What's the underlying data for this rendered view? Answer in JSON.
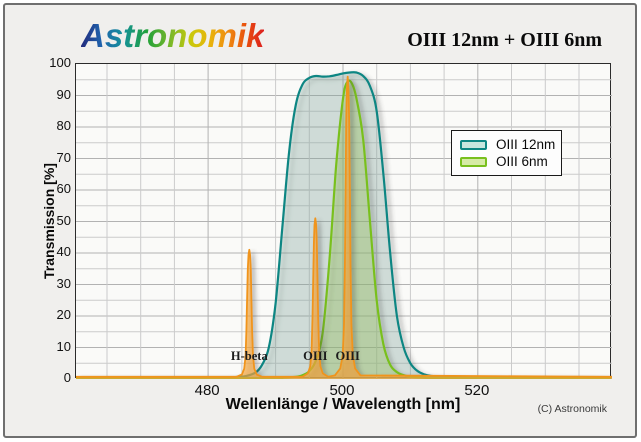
{
  "header": {
    "logo": "Astronomik",
    "title": "OIII 12nm + OIII 6nm"
  },
  "chart_data": {
    "type": "area",
    "title": "OIII 12nm + OIII 6nm",
    "xlabel": "Wellenlänge / Wavelength [nm]",
    "ylabel": "Transmission [%]",
    "xlim": [
      460.4,
      539.9
    ],
    "ylim": [
      0,
      100
    ],
    "x_ticks": [
      480,
      500,
      520
    ],
    "y_ticks": [
      0,
      10,
      20,
      30,
      40,
      50,
      60,
      70,
      80,
      90,
      100
    ],
    "grid": {
      "x_step_nm": 5,
      "y_step_pct": 5,
      "major_color": "#b2b2b2",
      "minor_color": "#cbcbcb"
    },
    "plot_bg": "#fafaf8",
    "legend": {
      "position": "upper-right",
      "entries": [
        {
          "label": "OIII 12nm",
          "stroke": "#0f8683",
          "fill": "#c8e6de"
        },
        {
          "label": "OIII 6nm",
          "stroke": "#79c01e",
          "fill": "#d6eba6"
        }
      ]
    },
    "series": [
      {
        "name": "OIII 12nm",
        "stroke": "#0f8683",
        "fill": "rgba(140,180,170,0.28)",
        "points": [
          [
            460.4,
            0.3
          ],
          [
            475,
            0.3
          ],
          [
            482,
            0.4
          ],
          [
            484,
            0.6
          ],
          [
            485.5,
            0.9
          ],
          [
            487,
            2
          ],
          [
            488,
            4.5
          ],
          [
            489,
            10
          ],
          [
            490,
            24
          ],
          [
            491,
            48
          ],
          [
            492,
            72
          ],
          [
            493,
            87
          ],
          [
            494,
            93.5
          ],
          [
            495,
            95.6
          ],
          [
            496,
            96.2
          ],
          [
            497,
            96.0
          ],
          [
            498,
            96.1
          ],
          [
            499,
            96.5
          ],
          [
            500,
            97.0
          ],
          [
            501,
            97.3
          ],
          [
            502,
            97.3
          ],
          [
            503,
            96.2
          ],
          [
            504,
            93
          ],
          [
            505,
            85
          ],
          [
            506,
            65
          ],
          [
            507,
            40
          ],
          [
            508,
            20
          ],
          [
            509,
            10
          ],
          [
            510,
            5
          ],
          [
            511,
            2.6
          ],
          [
            512,
            1.5
          ],
          [
            513,
            1.0
          ],
          [
            515,
            0.6
          ],
          [
            518,
            0.4
          ],
          [
            524,
            0.3
          ],
          [
            539.8,
            0.3
          ]
        ]
      },
      {
        "name": "OIII 6nm",
        "stroke": "#79c01e",
        "fill": "rgba(158,205,96,0.30)",
        "points": [
          [
            460.4,
            0.25
          ],
          [
            488,
            0.3
          ],
          [
            491,
            0.4
          ],
          [
            493,
            0.7
          ],
          [
            494,
            1.2
          ],
          [
            495,
            2.5
          ],
          [
            496,
            6
          ],
          [
            497,
            15
          ],
          [
            498,
            38
          ],
          [
            499,
            68
          ],
          [
            500,
            89
          ],
          [
            500.7,
            94.5
          ],
          [
            501.4,
            93.5
          ],
          [
            502,
            89
          ],
          [
            503,
            76
          ],
          [
            504,
            50
          ],
          [
            505,
            25
          ],
          [
            506,
            11
          ],
          [
            507,
            4.5
          ],
          [
            508,
            2.2
          ],
          [
            509,
            1.2
          ],
          [
            510,
            0.7
          ],
          [
            512,
            0.45
          ],
          [
            516,
            0.35
          ],
          [
            539.8,
            0.3
          ]
        ]
      }
    ],
    "emission_lines": {
      "stroke": "#f0941d",
      "fill": "rgba(246,166,58,0.65)",
      "baseline_pct": 0.7,
      "lines": [
        {
          "label": "H-beta",
          "wavelength": 486.1,
          "peak": 41
        },
        {
          "label": "OIII",
          "wavelength": 495.9,
          "peak": 51
        },
        {
          "label": "OIII",
          "wavelength": 500.7,
          "peak": 96
        }
      ]
    },
    "footer_credit": "(C) Astronomik"
  }
}
